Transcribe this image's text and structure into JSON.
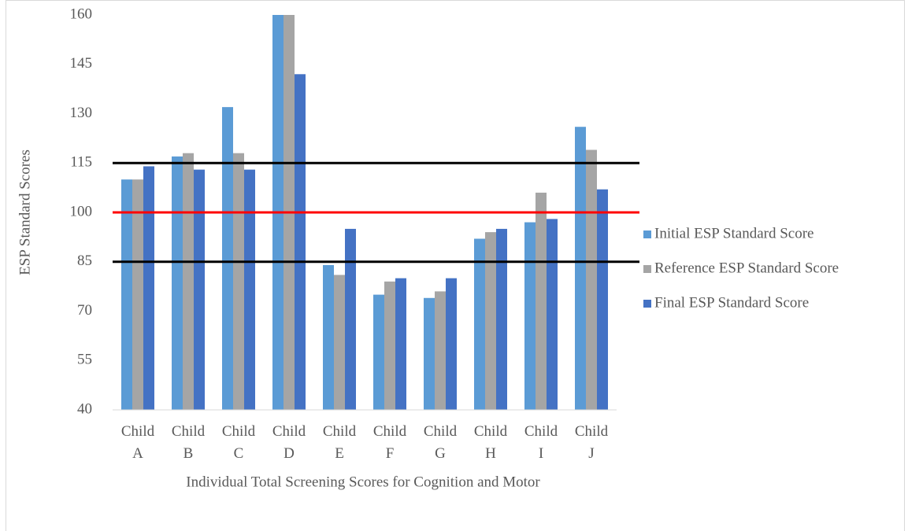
{
  "chart_data": {
    "type": "bar",
    "x_label": "Individual Total Screening Scores for Cognition and Motor",
    "y_label": "ESP Standard Scores",
    "categories": [
      "Child A",
      "Child B",
      "Child C",
      "Child D",
      "Child E",
      "Child F",
      "Child G",
      "Child H",
      "Child I",
      "Child J"
    ],
    "series": [
      {
        "name": "Initial ESP Standard Score",
        "color": "#5b9bd5",
        "values": [
          110,
          117,
          132,
          160,
          84,
          75,
          74,
          92,
          97,
          126
        ]
      },
      {
        "name": "Reference ESP Standard Score",
        "color": "#a5a5a5",
        "values": [
          110,
          118,
          118,
          160,
          81,
          79,
          76,
          94,
          106,
          119
        ]
      },
      {
        "name": "Final ESP Standard Score",
        "color": "#4472c4",
        "values": [
          114,
          113,
          113,
          142,
          95,
          80,
          80,
          95,
          98,
          107
        ]
      }
    ],
    "reference_lines": [
      {
        "value": 115,
        "color": "#000000"
      },
      {
        "value": 100,
        "color": "#ff0000"
      },
      {
        "value": 85,
        "color": "#000000"
      }
    ],
    "ylim": [
      40,
      160
    ],
    "yticks": [
      40,
      55,
      70,
      85,
      100,
      115,
      130,
      145,
      160
    ],
    "grid": false,
    "legend": "right"
  }
}
